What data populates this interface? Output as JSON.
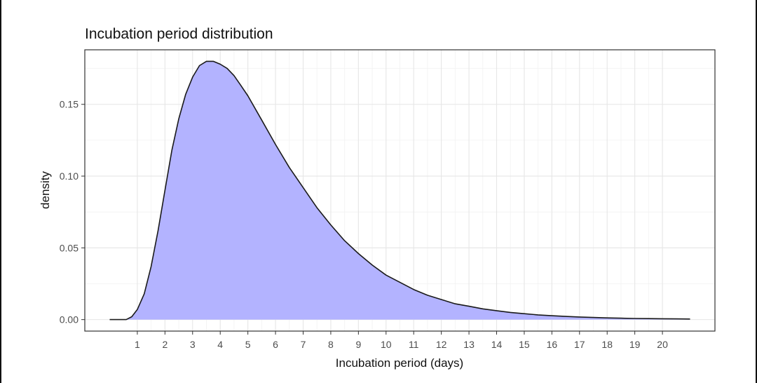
{
  "chart_data": {
    "type": "area",
    "title": "Incubation period distribution",
    "xlabel": "Incubation period (days)",
    "ylabel": "density",
    "xlim": [
      -0.9,
      21.9
    ],
    "ylim": [
      -0.008,
      0.188
    ],
    "x_ticks": [
      1,
      2,
      3,
      4,
      5,
      6,
      7,
      8,
      9,
      10,
      11,
      12,
      13,
      14,
      15,
      16,
      17,
      18,
      19,
      20
    ],
    "x_tick_labels": [
      "1",
      "2",
      "3",
      "4",
      "5",
      "6",
      "7",
      "8",
      "9",
      "10",
      "11",
      "12",
      "13",
      "14",
      "15",
      "16",
      "17",
      "18",
      "19",
      "20"
    ],
    "y_ticks": [
      0.0,
      0.05,
      0.1,
      0.15
    ],
    "y_tick_labels": [
      "0.00",
      "0.05",
      "0.10",
      "0.15"
    ],
    "grid": true,
    "fill_color": "#B3B3FF",
    "line_color": "#1a1a1a",
    "series": [
      {
        "x": [
          0,
          0.3,
          0.6,
          0.8,
          1.0,
          1.25,
          1.5,
          1.75,
          2.0,
          2.25,
          2.5,
          2.75,
          3.0,
          3.25,
          3.5,
          3.75,
          4.0,
          4.25,
          4.5,
          4.75,
          5.0,
          5.5,
          6.0,
          6.5,
          7.0,
          7.5,
          8.0,
          8.5,
          9.0,
          9.5,
          10.0,
          10.5,
          11.0,
          11.5,
          12.0,
          12.5,
          13.0,
          13.5,
          14.0,
          14.5,
          15.0,
          15.5,
          16.0,
          16.5,
          17.0,
          17.5,
          18.0,
          18.5,
          19.0,
          19.5,
          20.0,
          20.5,
          21.0
        ],
        "y": [
          0.0,
          0.0,
          0.0,
          0.002,
          0.007,
          0.018,
          0.037,
          0.062,
          0.09,
          0.118,
          0.14,
          0.157,
          0.169,
          0.177,
          0.18,
          0.18,
          0.178,
          0.175,
          0.17,
          0.163,
          0.156,
          0.139,
          0.122,
          0.106,
          0.092,
          0.078,
          0.066,
          0.055,
          0.046,
          0.038,
          0.031,
          0.026,
          0.021,
          0.017,
          0.014,
          0.011,
          0.0093,
          0.0075,
          0.0062,
          0.005,
          0.0041,
          0.0033,
          0.0027,
          0.0022,
          0.0018,
          0.0015,
          0.0012,
          0.001,
          0.0008,
          0.0007,
          0.0006,
          0.0005,
          0.0004
        ]
      }
    ]
  }
}
